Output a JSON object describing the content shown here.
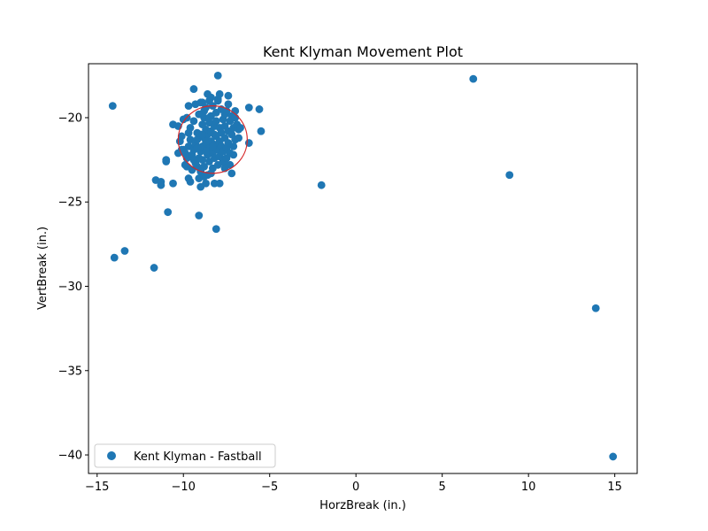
{
  "chart_data": {
    "type": "scatter",
    "title": "Kent Klyman Movement Plot",
    "xlabel": "HorzBreak (in.)",
    "ylabel": "VertBreak (in.)",
    "xlim": [
      -15.5,
      16.3
    ],
    "ylim": [
      -41.1,
      -16.8
    ],
    "xticks": [
      -15,
      -10,
      -5,
      0,
      5,
      10,
      15
    ],
    "yticks": [
      -20,
      -25,
      -30,
      -35,
      -40
    ],
    "xtick_labels": [
      "−15",
      "−10",
      "−5",
      "0",
      "5",
      "10",
      "15"
    ],
    "ytick_labels": [
      "−20",
      "−25",
      "−30",
      "−35",
      "−40"
    ],
    "grid": false,
    "legend_position": "lower-left",
    "colors": {
      "series": "#1f77b4",
      "circle": "#d62728"
    },
    "series": [
      {
        "name": "Kent Klyman - Fastball",
        "points": [
          [
            -14.1,
            -19.3
          ],
          [
            -14.0,
            -28.3
          ],
          [
            -13.4,
            -27.9
          ],
          [
            -11.7,
            -28.9
          ],
          [
            -11.6,
            -23.7
          ],
          [
            -11.3,
            -23.8
          ],
          [
            -11.3,
            -24.0
          ],
          [
            -11.0,
            -22.5
          ],
          [
            -11.0,
            -22.6
          ],
          [
            -10.9,
            -25.6
          ],
          [
            -10.6,
            -20.4
          ],
          [
            -10.6,
            -23.9
          ],
          [
            -10.3,
            -20.5
          ],
          [
            -10.1,
            -21.1
          ],
          [
            -10.0,
            -20.1
          ],
          [
            -10.0,
            -21.9
          ],
          [
            -9.9,
            -22.8
          ],
          [
            -9.8,
            -20.0
          ],
          [
            -9.7,
            -19.3
          ],
          [
            -9.7,
            -23.6
          ],
          [
            -9.6,
            -23.8
          ],
          [
            -9.4,
            -18.3
          ],
          [
            -9.3,
            -19.2
          ],
          [
            -9.2,
            -22.9
          ],
          [
            -9.1,
            -25.8
          ],
          [
            -9.0,
            -24.1
          ],
          [
            -9.0,
            -19.1
          ],
          [
            -8.8,
            -19.6
          ],
          [
            -8.7,
            -23.9
          ],
          [
            -8.6,
            -18.6
          ],
          [
            -8.4,
            -18.8
          ],
          [
            -8.2,
            -23.9
          ],
          [
            -8.1,
            -26.6
          ],
          [
            -8.0,
            -17.5
          ],
          [
            -7.9,
            -18.6
          ],
          [
            -7.9,
            -23.9
          ],
          [
            -7.6,
            -22.7
          ],
          [
            -7.4,
            -18.7
          ],
          [
            -7.2,
            -23.3
          ],
          [
            -6.8,
            -20.7
          ],
          [
            -6.2,
            -19.4
          ],
          [
            -6.2,
            -21.5
          ],
          [
            -5.6,
            -19.5
          ],
          [
            -5.5,
            -20.8
          ],
          [
            -2.0,
            -24.0
          ],
          [
            6.8,
            -17.7
          ],
          [
            8.9,
            -23.4
          ],
          [
            13.9,
            -31.3
          ],
          [
            14.9,
            -40.1
          ],
          [
            -10.1,
            -21.9
          ],
          [
            -9.9,
            -22.1
          ],
          [
            -9.8,
            -22.4
          ],
          [
            -9.7,
            -21.7
          ],
          [
            -9.6,
            -21.3
          ],
          [
            -9.6,
            -20.6
          ],
          [
            -9.5,
            -22.2
          ],
          [
            -9.5,
            -23.1
          ],
          [
            -9.4,
            -21.9
          ],
          [
            -9.4,
            -20.2
          ],
          [
            -9.3,
            -21.6
          ],
          [
            -9.3,
            -22.7
          ],
          [
            -9.2,
            -20.9
          ],
          [
            -9.2,
            -21.3
          ],
          [
            -9.1,
            -22.4
          ],
          [
            -9.1,
            -19.8
          ],
          [
            -9.0,
            -21.0
          ],
          [
            -9.0,
            -22.0
          ],
          [
            -9.0,
            -23.2
          ],
          [
            -8.9,
            -20.4
          ],
          [
            -8.9,
            -21.7
          ],
          [
            -8.9,
            -22.5
          ],
          [
            -8.8,
            -21.2
          ],
          [
            -8.8,
            -20.0
          ],
          [
            -8.8,
            -22.9
          ],
          [
            -8.7,
            -21.5
          ],
          [
            -8.7,
            -20.7
          ],
          [
            -8.7,
            -19.4
          ],
          [
            -8.6,
            -22.2
          ],
          [
            -8.6,
            -21.0
          ],
          [
            -8.6,
            -23.4
          ],
          [
            -8.5,
            -20.3
          ],
          [
            -8.5,
            -21.8
          ],
          [
            -8.5,
            -22.6
          ],
          [
            -8.4,
            -19.9
          ],
          [
            -8.4,
            -21.4
          ],
          [
            -8.4,
            -20.8
          ],
          [
            -8.3,
            -22.1
          ],
          [
            -8.3,
            -19.3
          ],
          [
            -8.3,
            -23.0
          ],
          [
            -8.2,
            -20.5
          ],
          [
            -8.2,
            -21.6
          ],
          [
            -8.2,
            -22.4
          ],
          [
            -8.1,
            -19.7
          ],
          [
            -8.1,
            -21.1
          ],
          [
            -8.1,
            -20.2
          ],
          [
            -8.0,
            -22.8
          ],
          [
            -8.0,
            -21.9
          ],
          [
            -8.0,
            -19.0
          ],
          [
            -7.9,
            -20.6
          ],
          [
            -7.9,
            -21.4
          ],
          [
            -7.9,
            -22.3
          ],
          [
            -7.8,
            -19.5
          ],
          [
            -7.8,
            -20.9
          ],
          [
            -7.8,
            -21.7
          ],
          [
            -7.7,
            -20.1
          ],
          [
            -7.7,
            -22.0
          ],
          [
            -7.7,
            -22.6
          ],
          [
            -7.6,
            -21.2
          ],
          [
            -7.6,
            -19.8
          ],
          [
            -7.6,
            -20.5
          ],
          [
            -7.5,
            -21.8
          ],
          [
            -7.5,
            -22.4
          ],
          [
            -7.5,
            -19.6
          ],
          [
            -7.4,
            -20.8
          ],
          [
            -7.4,
            -21.5
          ],
          [
            -7.3,
            -20.2
          ],
          [
            -7.3,
            -22.1
          ],
          [
            -7.2,
            -19.9
          ],
          [
            -7.2,
            -21.0
          ],
          [
            -7.1,
            -20.6
          ],
          [
            -7.1,
            -21.7
          ],
          [
            -7.0,
            -20.0
          ],
          [
            -7.0,
            -21.3
          ],
          [
            -6.9,
            -20.4
          ],
          [
            -6.7,
            -20.6
          ],
          [
            -7.1,
            -22.2
          ],
          [
            -7.3,
            -22.8
          ],
          [
            -7.6,
            -23.0
          ],
          [
            -8.4,
            -23.3
          ],
          [
            -9.8,
            -22.9
          ],
          [
            -10.2,
            -21.4
          ],
          [
            -10.3,
            -22.1
          ],
          [
            -9.7,
            -20.9
          ],
          [
            -8.9,
            -19.1
          ],
          [
            -8.5,
            -19.0
          ],
          [
            -8.0,
            -18.9
          ],
          [
            -7.4,
            -19.2
          ],
          [
            -7.0,
            -19.6
          ],
          [
            -6.8,
            -21.2
          ],
          [
            -9.4,
            -22.5
          ],
          [
            -9.1,
            -23.6
          ],
          [
            -8.8,
            -23.5
          ],
          [
            -8.5,
            -20.0
          ],
          [
            -8.2,
            -21.0
          ],
          [
            -8.6,
            -21.4
          ],
          [
            -8.9,
            -21.0
          ],
          [
            -9.2,
            -21.8
          ],
          [
            -8.7,
            -22.0
          ],
          [
            -8.3,
            -21.7
          ]
        ]
      }
    ],
    "annotations": [
      {
        "type": "circle",
        "cx": -8.3,
        "cy": -21.3,
        "r": 2.0,
        "color": "#d62728"
      }
    ]
  }
}
